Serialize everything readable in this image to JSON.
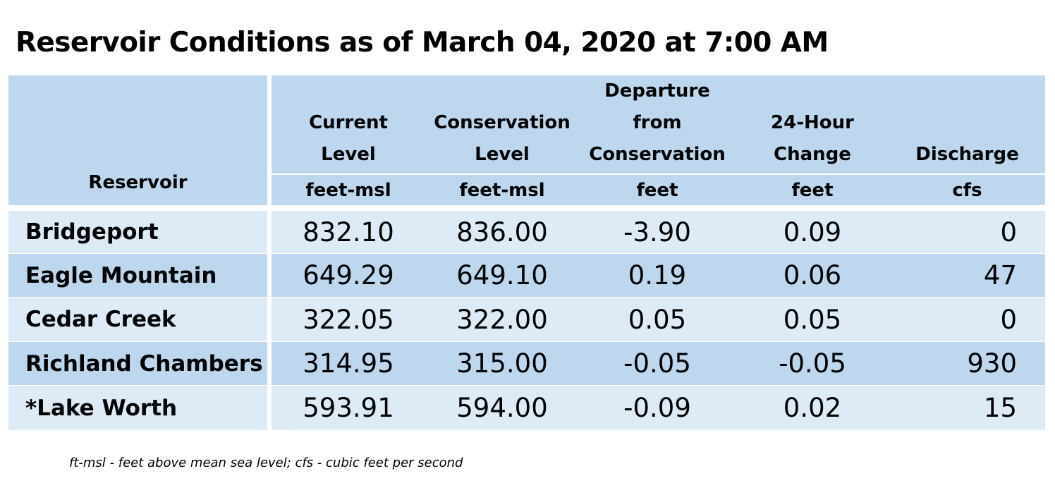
{
  "title": "Reservoir Conditions as of March 04, 2020 at 7:00 AM",
  "table": {
    "header": {
      "reservoir": "Reservoir",
      "columns": [
        {
          "lines": [
            "Current",
            "Level"
          ],
          "unit": "feet-msl"
        },
        {
          "lines": [
            "Conservation",
            "Level"
          ],
          "unit": "feet-msl"
        },
        {
          "lines": [
            "Departure",
            "from",
            "Conservation"
          ],
          "unit": "feet"
        },
        {
          "lines": [
            "24-Hour",
            "Change"
          ],
          "unit": "feet"
        },
        {
          "lines": [
            "Discharge"
          ],
          "unit": "cfs"
        }
      ]
    },
    "rows": [
      {
        "name": "Bridgeport",
        "current": "832.10",
        "conservation": "836.00",
        "departure": "-3.90",
        "change": "0.09",
        "discharge": "0"
      },
      {
        "name": "Eagle Mountain",
        "current": "649.29",
        "conservation": "649.10",
        "departure": "0.19",
        "change": "0.06",
        "discharge": "47"
      },
      {
        "name": "Cedar Creek",
        "current": "322.05",
        "conservation": "322.00",
        "departure": "0.05",
        "change": "0.05",
        "discharge": "0"
      },
      {
        "name": "Richland Chambers",
        "current": "314.95",
        "conservation": "315.00",
        "departure": "-0.05",
        "change": "-0.05",
        "discharge": "930"
      },
      {
        "name": "*Lake Worth",
        "current": "593.91",
        "conservation": "594.00",
        "departure": "-0.09",
        "change": "0.02",
        "discharge": "15"
      }
    ]
  },
  "footnote": "ft-msl - feet above mean sea level; cfs - cubic feet per second",
  "colors": {
    "header_bg": "#bdd7ee",
    "row_light": "#ddebf7",
    "row_dark": "#bdd7ee"
  }
}
